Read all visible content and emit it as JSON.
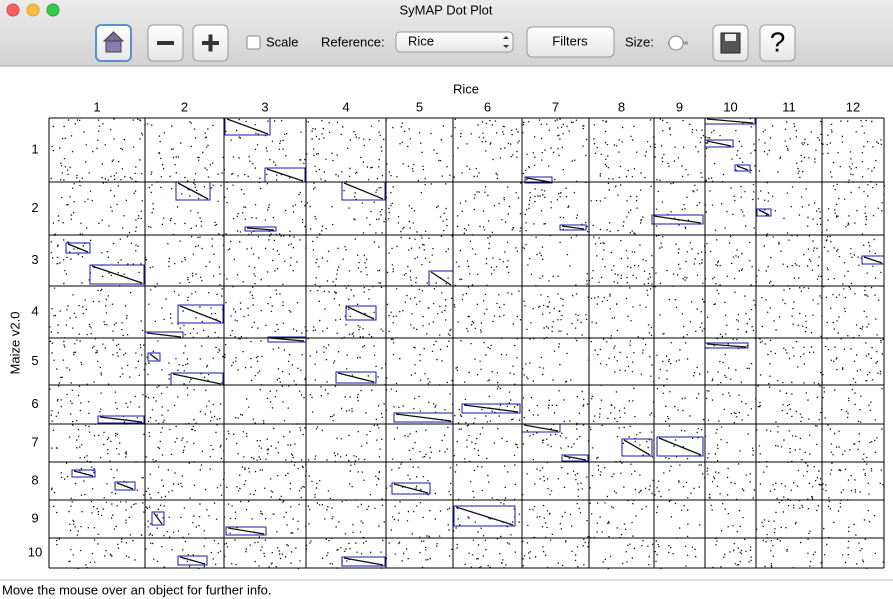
{
  "window": {
    "title": "SyMAP Dot Plot"
  },
  "toolbar": {
    "scale_label": "Scale",
    "reference_label": "Reference:",
    "reference_value": "Rice",
    "filters_button": "Filters",
    "size_label": "Size:",
    "help_icon": "?"
  },
  "plot": {
    "x_title": "Rice",
    "y_title": "Maize v2.0",
    "x_labels": [
      "1",
      "2",
      "3",
      "4",
      "5",
      "6",
      "7",
      "8",
      "9",
      "10",
      "11",
      "12"
    ],
    "y_labels": [
      "1",
      "2",
      "3",
      "4",
      "5",
      "6",
      "7",
      "8",
      "9",
      "10"
    ]
  },
  "status": {
    "message": "Move the mouse over an object for further info."
  }
}
